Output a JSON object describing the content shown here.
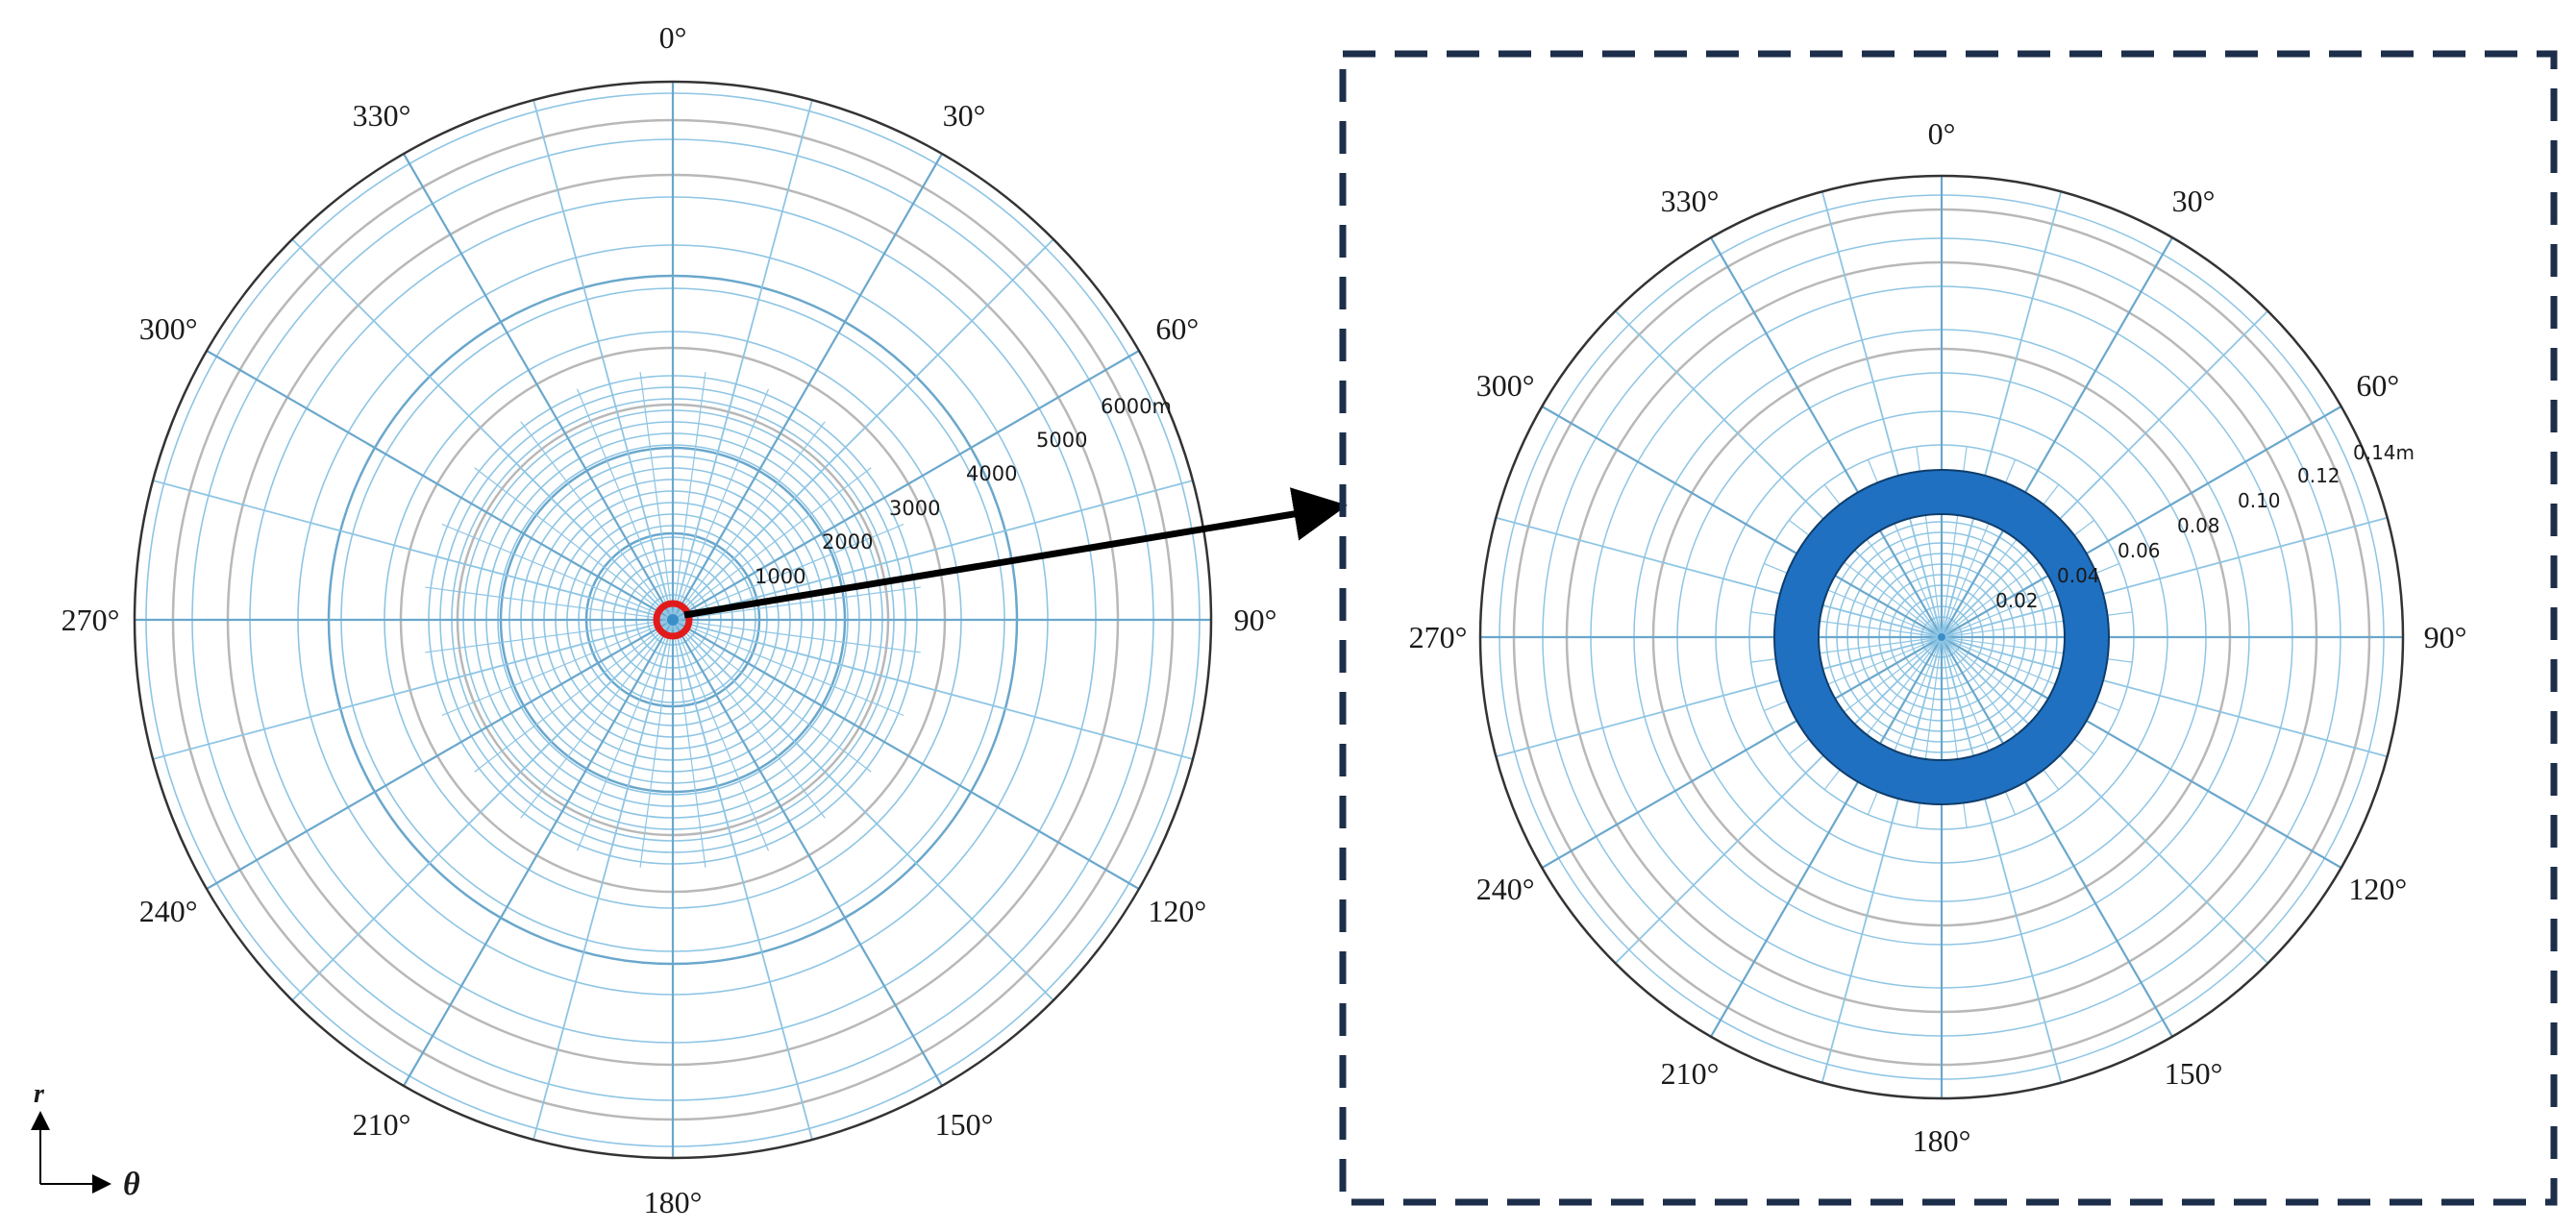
{
  "left_plot": {
    "angle_labels": [
      "0°",
      "30°",
      "60°",
      "90°",
      "120°",
      "150°",
      "180°",
      "210°",
      "240°",
      "270°",
      "300°",
      "330°"
    ],
    "radial_labels": [
      "1000",
      "2000",
      "3000",
      "4000",
      "5000",
      "6000m"
    ]
  },
  "right_plot": {
    "angle_labels": [
      "0°",
      "30°",
      "60°",
      "90°",
      "120°",
      "150°",
      "180°",
      "210°",
      "240°",
      "270°",
      "300°",
      "330°"
    ],
    "radial_labels": [
      "0.02",
      "0.04",
      "0.06",
      "0.08",
      "0.10",
      "0.12",
      "0.14m"
    ]
  },
  "axis_indicator": {
    "r_label": "r",
    "theta_label": "θ"
  },
  "colors": {
    "grid": "#8ec5e4",
    "grid_dark": "#6aa7cc",
    "gray_ring": "#b8b8b8",
    "outline": "#333333",
    "highlight_ring": "#e11b1b",
    "annulus": "#1f70c1",
    "dashed_box": "#1c2e4a"
  }
}
